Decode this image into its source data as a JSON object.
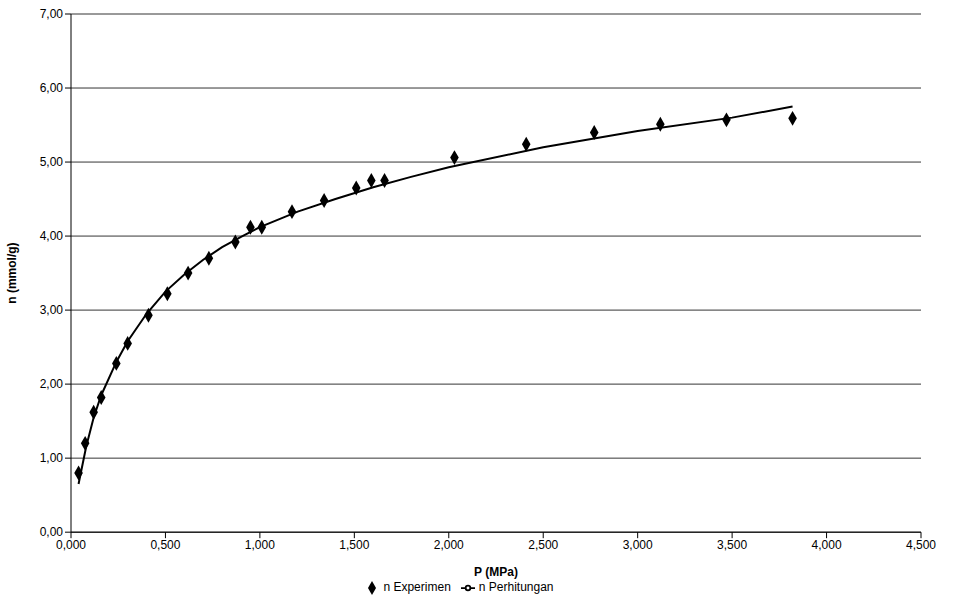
{
  "chart_data": {
    "type": "scatter",
    "x_label": "P (MPa)",
    "y_label": "n (mmol/g)",
    "xlim": [
      0,
      4.5
    ],
    "ylim": [
      0,
      7
    ],
    "xticks": [
      {
        "value": 0,
        "label": "0,000"
      },
      {
        "value": 0.5,
        "label": "0,500"
      },
      {
        "value": 1,
        "label": "1,000"
      },
      {
        "value": 1.5,
        "label": "1,500"
      },
      {
        "value": 2,
        "label": "2,000"
      },
      {
        "value": 2.5,
        "label": "2,500"
      },
      {
        "value": 3,
        "label": "3,000"
      },
      {
        "value": 3.5,
        "label": "3,500"
      },
      {
        "value": 4,
        "label": "4,000"
      },
      {
        "value": 4.5,
        "label": "4,500"
      }
    ],
    "yticks": [
      {
        "value": 0,
        "label": "0,00"
      },
      {
        "value": 1,
        "label": "1,00"
      },
      {
        "value": 2,
        "label": "2,00"
      },
      {
        "value": 3,
        "label": "3,00"
      },
      {
        "value": 4,
        "label": "4,00"
      },
      {
        "value": 5,
        "label": "5,00"
      },
      {
        "value": 6,
        "label": "6,00"
      },
      {
        "value": 7,
        "label": "7,00"
      }
    ],
    "grid": true,
    "legend": "bottom",
    "series": [
      {
        "name": "n Experimen",
        "type": "scatter",
        "marker": "diamond",
        "color": "#000000",
        "x": [
          0.04,
          0.075,
          0.12,
          0.16,
          0.24,
          0.3,
          0.41,
          0.51,
          0.62,
          0.73,
          0.87,
          0.95,
          1.01,
          1.17,
          1.34,
          1.51,
          1.59,
          1.66,
          2.03,
          2.41,
          2.77,
          3.12,
          3.47,
          3.82
        ],
        "values": [
          0.8,
          1.2,
          1.62,
          1.82,
          2.28,
          2.55,
          2.93,
          3.22,
          3.5,
          3.7,
          3.92,
          4.12,
          4.12,
          4.33,
          4.48,
          4.65,
          4.75,
          4.75,
          5.06,
          5.24,
          5.4,
          5.51,
          5.57,
          5.59
        ]
      },
      {
        "name": "n Perhitungan",
        "type": "line",
        "color": "#000000",
        "x": [
          0.04,
          0.08,
          0.12,
          0.16,
          0.24,
          0.3,
          0.4,
          0.5,
          0.6,
          0.7,
          0.8,
          0.9,
          1.0,
          1.2,
          1.4,
          1.6,
          1.8,
          2.0,
          2.5,
          3.0,
          3.5,
          3.82
        ],
        "values": [
          0.65,
          1.15,
          1.55,
          1.85,
          2.3,
          2.58,
          2.95,
          3.25,
          3.48,
          3.68,
          3.85,
          3.99,
          4.12,
          4.33,
          4.5,
          4.66,
          4.8,
          4.93,
          5.2,
          5.42,
          5.6,
          5.75
        ]
      }
    ]
  }
}
